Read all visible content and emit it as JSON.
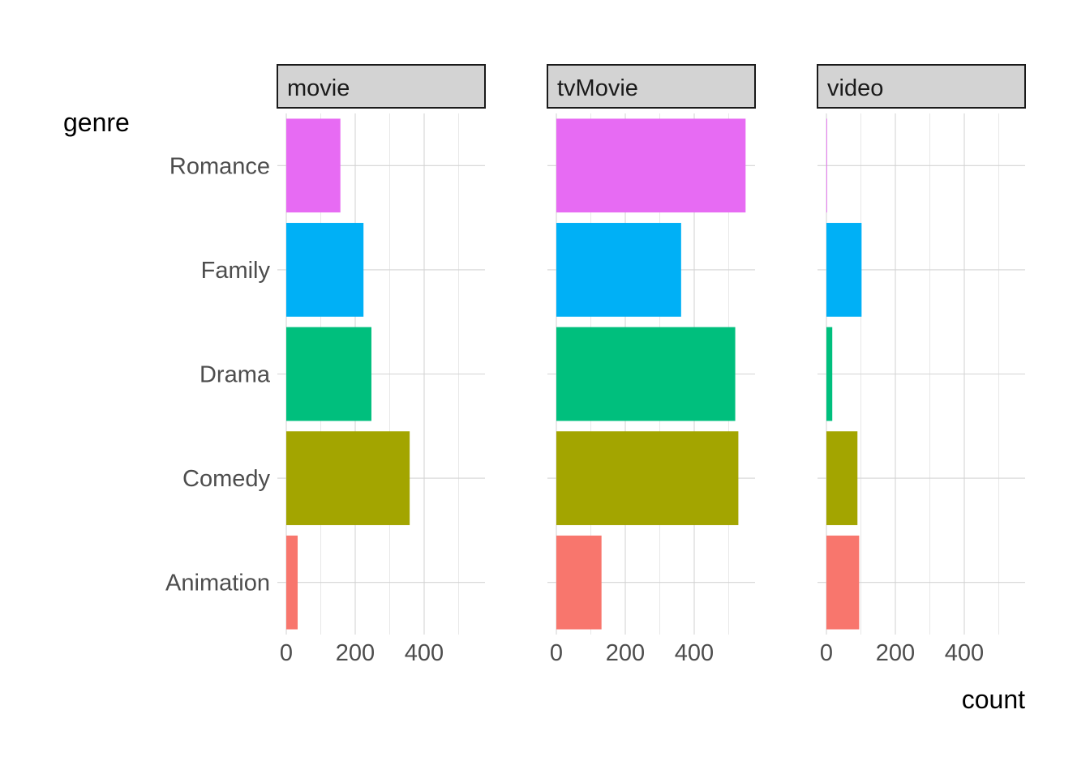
{
  "chart_data": {
    "type": "bar",
    "orientation": "horizontal",
    "facet_by": "type",
    "categories": [
      "Animation",
      "Comedy",
      "Drama",
      "Family",
      "Romance"
    ],
    "facets": [
      {
        "name": "movie",
        "values": [
          33,
          358,
          247,
          224,
          157
        ]
      },
      {
        "name": "tvMovie",
        "values": [
          131,
          528,
          519,
          362,
          549
        ]
      },
      {
        "name": "video",
        "values": [
          95,
          90,
          17,
          102,
          2
        ]
      }
    ],
    "colors": {
      "Animation": "#F8766D",
      "Comedy": "#A3A500",
      "Drama": "#00BF7D",
      "Family": "#00B0F6",
      "Romance": "#E76BF3"
    },
    "xlabel": "count",
    "ylabel": "genre",
    "x_ticks": [
      0,
      200,
      400
    ],
    "xlim": [
      0,
      580
    ],
    "grid": true,
    "legend": "none"
  }
}
